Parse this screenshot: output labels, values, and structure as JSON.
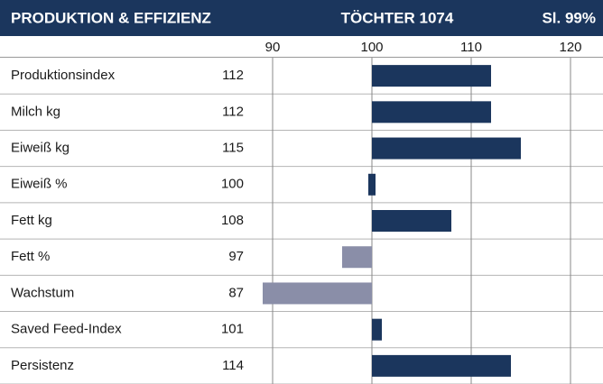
{
  "chart_data": {
    "type": "bar",
    "orientation": "horizontal",
    "title": "PRODUKTION & EFFIZIENZ",
    "subtitle": "TÖCHTER 1074",
    "annotation": "Sl. 99%",
    "categories": [
      "Produktionsindex",
      "Milch kg",
      "Eiweiß kg",
      "Eiweiß %",
      "Fett kg",
      "Fett %",
      "Wachstum",
      "Saved Feed-Index",
      "Persistenz"
    ],
    "values": [
      112,
      112,
      115,
      100,
      108,
      97,
      87,
      101,
      114
    ],
    "base": 100,
    "color_above": "#1b365d",
    "color_below": "#8a8ea8",
    "xlim": [
      89,
      123
    ],
    "xticks": [
      90,
      100,
      110,
      120
    ],
    "grid": true
  }
}
